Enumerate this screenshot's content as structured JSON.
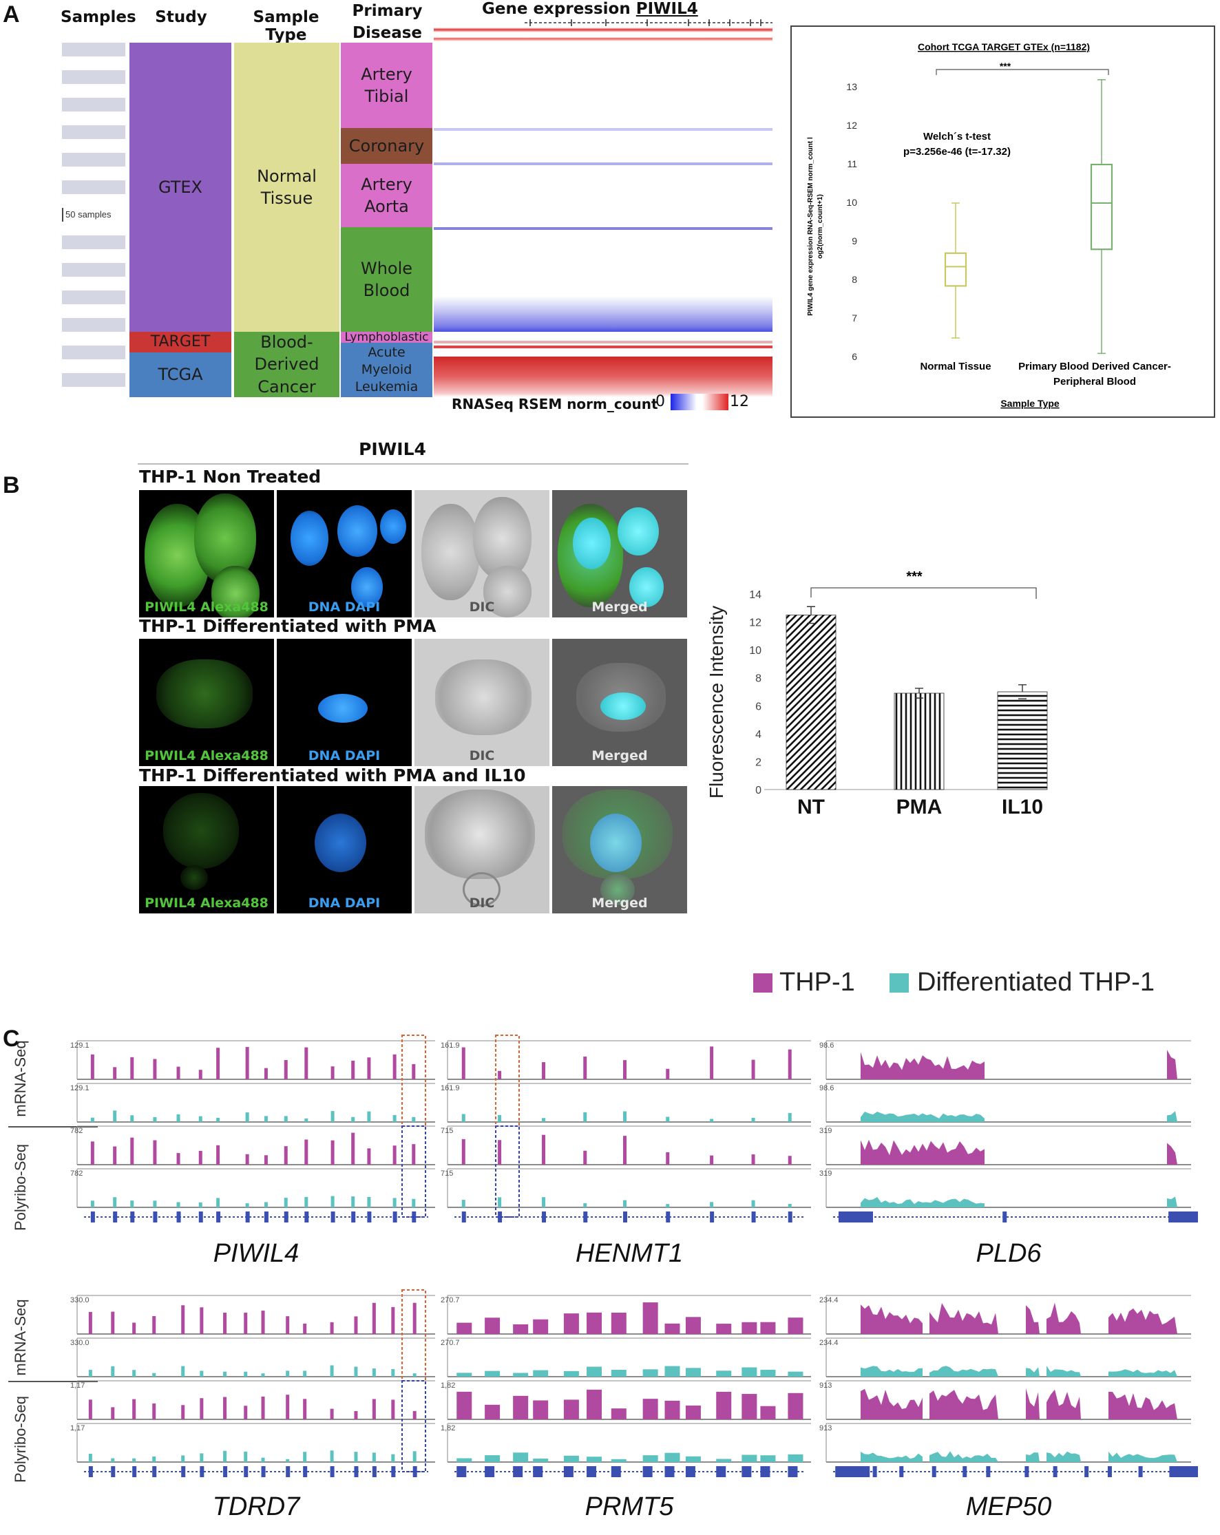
{
  "panels": {
    "a": "A",
    "b": "B",
    "c": "C"
  },
  "panelA": {
    "headers": {
      "samples": "Samples",
      "study": "Study",
      "sample_type": "Sample Type",
      "primary_disease": "Primary Disease",
      "gene_expression": "Gene expression",
      "gene": "PIWIL4"
    },
    "sample_scale": "50 samples",
    "study_blocks": [
      "GTEX",
      "TARGET",
      "TCGA"
    ],
    "type_blocks": [
      "Normal Tissue",
      "Blood-Derived Cancer"
    ],
    "disease_blocks": [
      "Artery Tibial",
      "Coronary",
      "Artery Aorta",
      "Whole Blood",
      "Lymphoblastic",
      "Acute Myeloid Leukemia"
    ],
    "legend": {
      "label": "RNASeq RSEM norm_count",
      "min": "0",
      "max": "12"
    },
    "colors": {
      "gtex": "#8e5fc0",
      "target": "#c93634",
      "tcga": "#4a7fc0",
      "normal": "#dede96",
      "blood_cancer": "#5aa541",
      "artery": "#d96fc9",
      "coronary": "#8b4f38",
      "whole_blood": "#5aa541",
      "aml": "#4a7fc0"
    }
  },
  "panelA_box": {
    "title": "Cohort TCGA TARGET GTEx (n=1182)",
    "significance": "***",
    "test_line1": "Welch´s t-test",
    "test_line2": "p=3.256e-46 (t=-17.32)",
    "ylabel_line1": "PIWIL4 gene expression RNA-Seq-RSEM norm_count l",
    "ylabel_line2": "og2(norm_count+1)",
    "xlabel": "Sample Type",
    "cat1": "Normal Tissue",
    "cat2_line1": "Primary Blood Derived Cancer-",
    "cat2_line2": "Peripheral Blood",
    "chart_data": {
      "type": "box",
      "title": "Cohort TCGA TARGET GTEx (n=1182)",
      "xlabel": "Sample Type",
      "ylabel": "PIWIL4 gene expression RNA-Seq-RSEM norm_count log2(norm_count+1)",
      "ylim": [
        6,
        13
      ],
      "yticks": [
        6,
        7,
        8,
        9,
        10,
        11,
        12,
        13
      ],
      "categories": [
        "Normal Tissue",
        "Primary Blood Derived Cancer-Peripheral Blood"
      ],
      "boxes": [
        {
          "min": 6.5,
          "q1": 7.85,
          "median": 8.35,
          "q3": 8.7,
          "max": 10.0,
          "color": "#c8c860"
        },
        {
          "min": 6.1,
          "q1": 8.8,
          "median": 10.0,
          "q3": 11.0,
          "max": 13.2,
          "color": "#78b070"
        }
      ]
    }
  },
  "panelB": {
    "title": "PIWIL4",
    "row_titles": [
      "THP-1 Non Treated",
      "THP-1 Differentiated with PMA",
      "THP-1 Differentiated with PMA and IL10"
    ],
    "cell_labels": [
      "PIWIL4 Alexa488",
      "DNA DAPI",
      "DIC",
      "Merged"
    ],
    "bar_chart": {
      "ylabel": "Fluorescence Intensity",
      "significance": "***",
      "chart_data": {
        "type": "bar",
        "categories": [
          "NT",
          "PMA",
          "IL10"
        ],
        "values": [
          12.5,
          6.9,
          7.0
        ],
        "errors": [
          0.6,
          0.35,
          0.5
        ],
        "ylim": [
          0,
          14
        ],
        "yticks": [
          0,
          2,
          4,
          6,
          8,
          10,
          12,
          14
        ],
        "ylabel": "Fluorescence Intensity",
        "patterns": [
          "diagonal",
          "vertical",
          "horizontal"
        ]
      }
    }
  },
  "panelC": {
    "legend": {
      "thp1": "THP-1",
      "diff": "Differentiated THP-1",
      "thp1_color": "#b04aa0",
      "diff_color": "#5cc2bf"
    },
    "row_labels": {
      "mrna": "mRNA-Seq",
      "polyribo": "Polyribo-Seq"
    },
    "genes": [
      {
        "name": "PIWIL4",
        "scales": [
          "129.1",
          "129.1",
          "782",
          "782"
        ]
      },
      {
        "name": "HENMT1",
        "scales": [
          "161.9",
          "161.9",
          "715",
          "715"
        ]
      },
      {
        "name": "PLD6",
        "scales": [
          "98.6",
          "98.6",
          "319",
          "319"
        ]
      },
      {
        "name": "TDRD7",
        "scales": [
          "330.0",
          "330.0",
          "1,17",
          "1,17"
        ]
      },
      {
        "name": "PRMT5",
        "scales": [
          "270.7",
          "270.7",
          "1,82",
          "1,82"
        ]
      },
      {
        "name": "MEP50",
        "scales": [
          "234.4",
          "234.4",
          "913",
          "913"
        ]
      }
    ]
  }
}
